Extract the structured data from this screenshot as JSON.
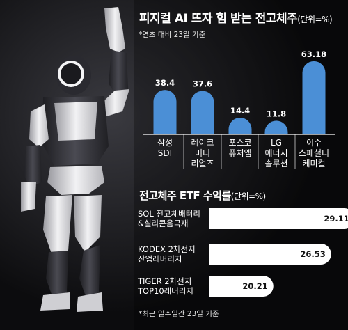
{
  "chart_data": [
    {
      "type": "bar",
      "title": "피지컬 AI 뜨자 힘 받는 전고체주",
      "unit_note": "(단위=%)",
      "subtitle": "*연초 대비 23일 기준",
      "categories": [
        "삼성\nSDI",
        "레이크\n머티\n리얼즈",
        "포스코\n퓨처엠",
        "LG\n에너지\n솔루션",
        "이수\n스페셜티\n케미컬"
      ],
      "values": [
        38.4,
        37.6,
        14.4,
        11.8,
        63.18
      ],
      "value_labels": [
        "38.4",
        "37.6",
        "14.4",
        "11.8",
        "63.18"
      ],
      "ylim": [
        0,
        70
      ],
      "grid": false,
      "bar_color": "#4b8fd6"
    },
    {
      "type": "bar",
      "orientation": "horizontal",
      "title": "전고체주 ETF 수익률",
      "unit_note": "(단위=%)",
      "footnote": "*최근 일주일간 23일 기준",
      "categories": [
        "SOL 전고체배터리\n&실리콘음극재",
        "KODEX 2차전지\n산업레버리지",
        "TIGER 2차전지\nTOP10레버리지"
      ],
      "values": [
        29.11,
        26.53,
        20.21
      ],
      "value_labels": [
        "29.11",
        "26.53",
        "20.21"
      ],
      "xlim": [
        0,
        32
      ],
      "grid": false,
      "bar_color": "#ffffff"
    }
  ]
}
